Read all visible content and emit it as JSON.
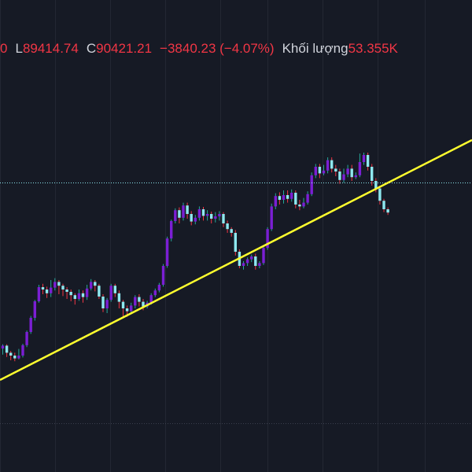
{
  "legend": {
    "open_tail": "0",
    "low_label": "L",
    "low_value": "89414.74",
    "close_label": "C",
    "close_value": "90421.21",
    "change": "−3840.23 (−4.07%)",
    "volume_label": "Khối lượng",
    "volume_value": "53.355K"
  },
  "colors": {
    "background": "#161a25",
    "grid": "#232733",
    "bull": "#7b1fd4",
    "bear": "#8ee8ef",
    "wick_up": "#26a69a",
    "wick_down": "#f23645",
    "trendline": "#ffff2e",
    "price_line": "#8ee8ef",
    "text_red": "#f23645",
    "text_grey": "#d1d4dc"
  },
  "chart_data": {
    "type": "candlestick",
    "close_price": 90421.21,
    "trendline": {
      "from_candle": 0,
      "to_candle": 105,
      "slope": "ascending"
    },
    "candles": [
      [
        0.295,
        0.301,
        0.282,
        0.304
      ],
      [
        0.301,
        0.286,
        0.277,
        0.304
      ],
      [
        0.286,
        0.28,
        0.27,
        0.29
      ],
      [
        0.28,
        0.274,
        0.268,
        0.286
      ],
      [
        0.274,
        0.28,
        0.272,
        0.294
      ],
      [
        0.28,
        0.302,
        0.276,
        0.305
      ],
      [
        0.302,
        0.33,
        0.298,
        0.333
      ],
      [
        0.33,
        0.36,
        0.326,
        0.364
      ],
      [
        0.36,
        0.395,
        0.354,
        0.398
      ],
      [
        0.395,
        0.425,
        0.392,
        0.43
      ],
      [
        0.425,
        0.42,
        0.41,
        0.432
      ],
      [
        0.42,
        0.412,
        0.402,
        0.426
      ],
      [
        0.412,
        0.424,
        0.404,
        0.44
      ],
      [
        0.424,
        0.436,
        0.418,
        0.444
      ],
      [
        0.436,
        0.428,
        0.41,
        0.44
      ],
      [
        0.428,
        0.42,
        0.406,
        0.432
      ],
      [
        0.42,
        0.415,
        0.4,
        0.425
      ],
      [
        0.415,
        0.408,
        0.395,
        0.42
      ],
      [
        0.408,
        0.4,
        0.388,
        0.412
      ],
      [
        0.4,
        0.412,
        0.396,
        0.42
      ],
      [
        0.412,
        0.404,
        0.392,
        0.418
      ],
      [
        0.404,
        0.422,
        0.398,
        0.43
      ],
      [
        0.422,
        0.436,
        0.418,
        0.442
      ],
      [
        0.436,
        0.428,
        0.416,
        0.44
      ],
      [
        0.428,
        0.405,
        0.4,
        0.432
      ],
      [
        0.405,
        0.38,
        0.372,
        0.41
      ],
      [
        0.38,
        0.398,
        0.37,
        0.402
      ],
      [
        0.398,
        0.428,
        0.394,
        0.432
      ],
      [
        0.428,
        0.412,
        0.404,
        0.432
      ],
      [
        0.412,
        0.394,
        0.38,
        0.418
      ],
      [
        0.394,
        0.38,
        0.36,
        0.398
      ],
      [
        0.38,
        0.374,
        0.362,
        0.386
      ],
      [
        0.374,
        0.386,
        0.368,
        0.392
      ],
      [
        0.386,
        0.404,
        0.38,
        0.408
      ],
      [
        0.404,
        0.394,
        0.384,
        0.41
      ],
      [
        0.394,
        0.384,
        0.376,
        0.4
      ],
      [
        0.384,
        0.392,
        0.38,
        0.396
      ],
      [
        0.392,
        0.408,
        0.388,
        0.412
      ],
      [
        0.408,
        0.418,
        0.404,
        0.422
      ],
      [
        0.418,
        0.43,
        0.414,
        0.434
      ],
      [
        0.43,
        0.47,
        0.426,
        0.474
      ],
      [
        0.47,
        0.528,
        0.466,
        0.532
      ],
      [
        0.528,
        0.565,
        0.522,
        0.568
      ],
      [
        0.565,
        0.588,
        0.56,
        0.592
      ],
      [
        0.588,
        0.572,
        0.56,
        0.594
      ],
      [
        0.572,
        0.598,
        0.566,
        0.604
      ],
      [
        0.598,
        0.58,
        0.57,
        0.604
      ],
      [
        0.58,
        0.564,
        0.556,
        0.586
      ],
      [
        0.564,
        0.572,
        0.558,
        0.578
      ],
      [
        0.572,
        0.59,
        0.566,
        0.596
      ],
      [
        0.59,
        0.576,
        0.566,
        0.595
      ],
      [
        0.576,
        0.58,
        0.566,
        0.588
      ],
      [
        0.58,
        0.57,
        0.56,
        0.585
      ],
      [
        0.57,
        0.575,
        0.562,
        0.584
      ],
      [
        0.575,
        0.58,
        0.566,
        0.586
      ],
      [
        0.58,
        0.56,
        0.552,
        0.584
      ],
      [
        0.56,
        0.548,
        0.54,
        0.566
      ],
      [
        0.548,
        0.54,
        0.532,
        0.552
      ],
      [
        0.54,
        0.5,
        0.492,
        0.546
      ],
      [
        0.5,
        0.47,
        0.465,
        0.505
      ],
      [
        0.47,
        0.476,
        0.462,
        0.48
      ],
      [
        0.476,
        0.484,
        0.47,
        0.488
      ],
      [
        0.484,
        0.49,
        0.478,
        0.494
      ],
      [
        0.49,
        0.47,
        0.462,
        0.496
      ],
      [
        0.47,
        0.476,
        0.465,
        0.48
      ],
      [
        0.476,
        0.508,
        0.472,
        0.514
      ],
      [
        0.508,
        0.548,
        0.504,
        0.552
      ],
      [
        0.548,
        0.596,
        0.544,
        0.602
      ],
      [
        0.596,
        0.618,
        0.59,
        0.624
      ],
      [
        0.618,
        0.61,
        0.6,
        0.626
      ],
      [
        0.61,
        0.62,
        0.602,
        0.63
      ],
      [
        0.62,
        0.612,
        0.604,
        0.63
      ],
      [
        0.612,
        0.625,
        0.606,
        0.632
      ],
      [
        0.625,
        0.6,
        0.592,
        0.63
      ],
      [
        0.6,
        0.596,
        0.588,
        0.61
      ],
      [
        0.596,
        0.604,
        0.592,
        0.614
      ],
      [
        0.604,
        0.622,
        0.6,
        0.628
      ],
      [
        0.622,
        0.662,
        0.618,
        0.668
      ],
      [
        0.662,
        0.68,
        0.656,
        0.686
      ],
      [
        0.68,
        0.666,
        0.656,
        0.686
      ],
      [
        0.666,
        0.672,
        0.662,
        0.684
      ],
      [
        0.672,
        0.694,
        0.666,
        0.7
      ],
      [
        0.694,
        0.676,
        0.668,
        0.7
      ],
      [
        0.676,
        0.67,
        0.66,
        0.684
      ],
      [
        0.67,
        0.652,
        0.644,
        0.676
      ],
      [
        0.652,
        0.664,
        0.646,
        0.676
      ],
      [
        0.664,
        0.676,
        0.658,
        0.684
      ],
      [
        0.676,
        0.658,
        0.65,
        0.684
      ],
      [
        0.658,
        0.662,
        0.654,
        0.668
      ],
      [
        0.662,
        0.69,
        0.658,
        0.708
      ],
      [
        0.69,
        0.705,
        0.684,
        0.71
      ],
      [
        0.705,
        0.68,
        0.672,
        0.71
      ],
      [
        0.68,
        0.65,
        0.64,
        0.686
      ],
      [
        0.65,
        0.634,
        0.626,
        0.656
      ],
      [
        0.634,
        0.608,
        0.6,
        0.64
      ],
      [
        0.608,
        0.59,
        0.584,
        0.612
      ],
      [
        0.59,
        0.583,
        0.578,
        0.594
      ]
    ]
  }
}
